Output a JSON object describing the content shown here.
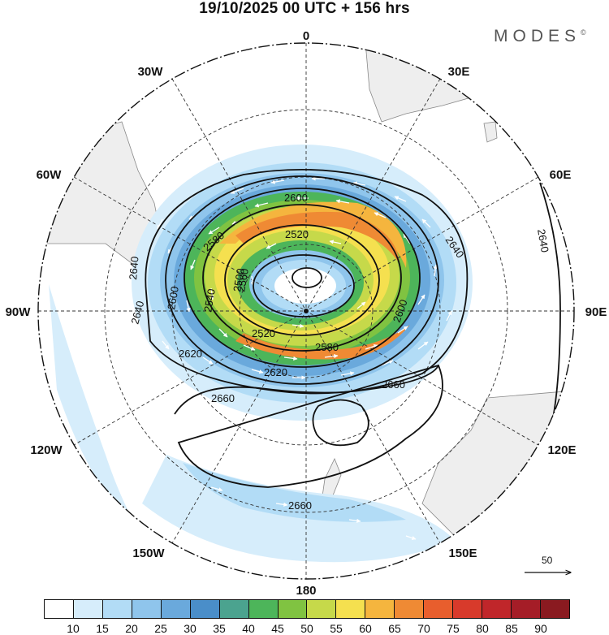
{
  "header": {
    "title": "19/10/2025  00 UTC  + 156 hrs",
    "brand": "MODES",
    "brand_mark": "©"
  },
  "map": {
    "projection": "polar stereographic, south pole",
    "longitude_labels": {
      "top": "0",
      "upper_right": "30E",
      "right_upper": "60E",
      "right": "90E",
      "right_lower": "120E",
      "lower_right": "150E",
      "bottom": "180",
      "lower_left": "150W",
      "left_lower": "120W",
      "left": "90W",
      "left_upper": "60W",
      "upper_left": "30W"
    },
    "contour_labels": [
      "2500",
      "2520",
      "2520",
      "2540",
      "2560",
      "2580",
      "2580",
      "2600",
      "2600",
      "2600",
      "2620",
      "2620",
      "2640",
      "2640",
      "2640",
      "2640",
      "2660",
      "2660",
      "2660"
    ],
    "colors": {
      "land": "#eeeeee",
      "coast": "#888888",
      "grid": "#333333",
      "contour": "#111111"
    }
  },
  "reference_vector": {
    "label": "50"
  },
  "colorbar": {
    "labels": [
      "10",
      "15",
      "20",
      "25",
      "30",
      "35",
      "40",
      "45",
      "50",
      "55",
      "60",
      "65",
      "70",
      "75",
      "80",
      "85",
      "90"
    ],
    "colors": [
      "#ffffff",
      "#d6edfb",
      "#b2dcf6",
      "#8fc5ec",
      "#6aa9dc",
      "#4a8ec9",
      "#4ba38f",
      "#4db55a",
      "#80c341",
      "#c6d94a",
      "#f5e04f",
      "#f5b53e",
      "#ef8a34",
      "#e85e2d",
      "#d83a2b",
      "#c0262a",
      "#a51d27",
      "#8a1a20"
    ]
  }
}
